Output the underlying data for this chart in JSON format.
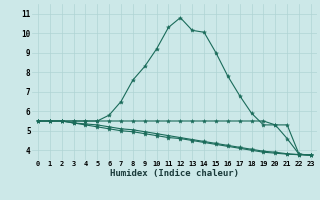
{
  "xlabel": "Humidex (Indice chaleur)",
  "xlim": [
    -0.5,
    23.5
  ],
  "ylim": [
    3.5,
    11.5
  ],
  "xticks": [
    0,
    1,
    2,
    3,
    4,
    5,
    6,
    7,
    8,
    9,
    10,
    11,
    12,
    13,
    14,
    15,
    16,
    17,
    18,
    19,
    20,
    21,
    22,
    23
  ],
  "yticks": [
    4,
    5,
    6,
    7,
    8,
    9,
    10,
    11
  ],
  "bg_color": "#cce8e8",
  "grid_color": "#b0d4d4",
  "line_color": "#1a6b5a",
  "line1_x": [
    0,
    1,
    2,
    3,
    4,
    5,
    6,
    7,
    8,
    9,
    10,
    11,
    12,
    13,
    14,
    15,
    16,
    17,
    18,
    19,
    20,
    21,
    22,
    23
  ],
  "line1_y": [
    5.5,
    5.5,
    5.5,
    5.5,
    5.5,
    5.5,
    5.8,
    6.5,
    7.6,
    8.3,
    9.2,
    10.3,
    10.8,
    10.15,
    10.05,
    9.0,
    7.8,
    6.8,
    5.9,
    5.3,
    5.3,
    4.6,
    3.8,
    3.75
  ],
  "line2_x": [
    0,
    1,
    2,
    3,
    4,
    5,
    6,
    7,
    8,
    9,
    10,
    11,
    12,
    13,
    14,
    15,
    16,
    17,
    18,
    19,
    20,
    21,
    22,
    23
  ],
  "line2_y": [
    5.5,
    5.5,
    5.5,
    5.5,
    5.5,
    5.5,
    5.5,
    5.5,
    5.5,
    5.5,
    5.5,
    5.5,
    5.5,
    5.5,
    5.5,
    5.5,
    5.5,
    5.5,
    5.5,
    5.5,
    5.3,
    5.3,
    3.8,
    3.75
  ],
  "line3_x": [
    0,
    1,
    2,
    3,
    4,
    5,
    6,
    7,
    8,
    9,
    10,
    11,
    12,
    13,
    14,
    15,
    16,
    17,
    18,
    19,
    20,
    21,
    22,
    23
  ],
  "line3_y": [
    5.5,
    5.5,
    5.5,
    5.4,
    5.35,
    5.3,
    5.2,
    5.1,
    5.05,
    4.95,
    4.85,
    4.75,
    4.65,
    4.55,
    4.45,
    4.35,
    4.25,
    4.15,
    4.05,
    3.95,
    3.9,
    3.82,
    3.78,
    3.75
  ],
  "line4_x": [
    0,
    1,
    2,
    3,
    4,
    5,
    6,
    7,
    8,
    9,
    10,
    11,
    12,
    13,
    14,
    15,
    16,
    17,
    18,
    19,
    20,
    21,
    22,
    23
  ],
  "line4_y": [
    5.5,
    5.5,
    5.5,
    5.4,
    5.3,
    5.2,
    5.1,
    5.0,
    4.95,
    4.85,
    4.75,
    4.65,
    4.6,
    4.5,
    4.4,
    4.3,
    4.2,
    4.1,
    4.0,
    3.9,
    3.85,
    3.8,
    3.77,
    3.75
  ]
}
